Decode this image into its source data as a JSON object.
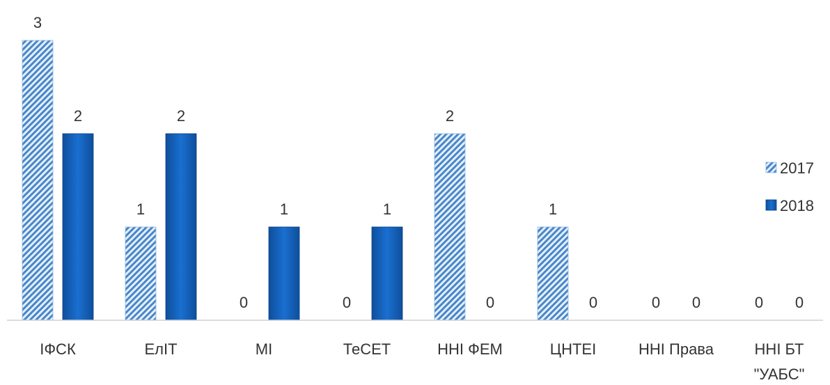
{
  "chart_data": {
    "type": "bar",
    "categories": [
      "ІФСК",
      "ЕлІТ",
      "МІ",
      "ТеСЕТ",
      "ННІ ФЕМ",
      "ЦНТЕІ",
      "ННІ Права",
      "ННІ БТ \"УАБС\""
    ],
    "series": [
      {
        "name": "2017",
        "values": [
          3,
          1,
          0,
          0,
          2,
          1,
          0,
          0
        ],
        "pattern": "hatched-light-blue"
      },
      {
        "name": "2018",
        "values": [
          2,
          2,
          1,
          1,
          0,
          0,
          0,
          0
        ],
        "pattern": "solid-blue"
      }
    ],
    "ylim": [
      0,
      3
    ],
    "grid": false,
    "legend_position": "right",
    "colors": {
      "series_2017_stripe": "#4a86c8",
      "series_2017_bg": "#e3f0fb",
      "series_2018": "#1565c0",
      "axis": "#d0d0d0"
    }
  }
}
